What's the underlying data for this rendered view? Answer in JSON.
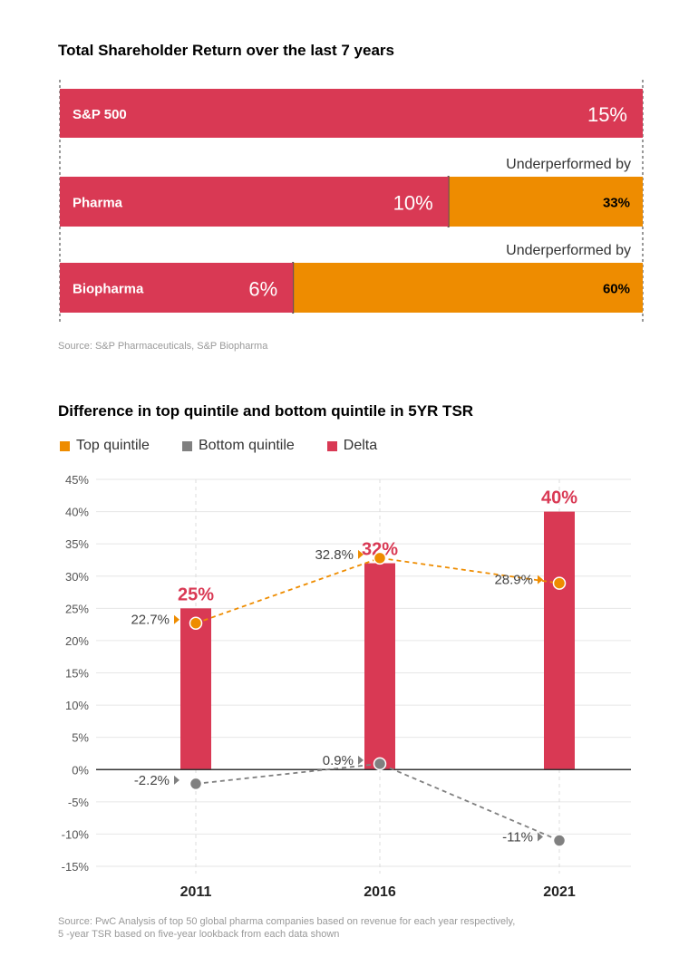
{
  "chart_data": [
    {
      "type": "bar",
      "orientation": "horizontal",
      "title": "Total Shareholder Return over the last 7 years",
      "categories": [
        "S&P 500",
        "Pharma",
        "Biopharma"
      ],
      "values": [
        15,
        10,
        6
      ],
      "value_labels": [
        "15%",
        "10%",
        "6%"
      ],
      "underperformance": [
        {
          "category": "Pharma",
          "label": "Underperformed by",
          "value": 33,
          "value_label": "33%"
        },
        {
          "category": "Biopharma",
          "label": "Underperformed by",
          "value": 60,
          "value_label": "60%"
        }
      ],
      "xlim": [
        0,
        15
      ],
      "source": "Source: S&P Pharmaceuticals, S&P Biopharma",
      "colors": {
        "bar": "#d93954",
        "gap": "#ee8c00"
      }
    },
    {
      "type": "bar",
      "title": "Difference in top quintile and bottom quintile in 5YR TSR",
      "categories": [
        "2011",
        "2016",
        "2021"
      ],
      "series": [
        {
          "name": "Top quintile",
          "kind": "line",
          "values": [
            22.7,
            32.8,
            28.9
          ],
          "labels": [
            "22.7%",
            "32.8%",
            "28.9%"
          ],
          "color": "#ee8c00"
        },
        {
          "name": "Bottom quintile",
          "kind": "line",
          "values": [
            -2.2,
            0.9,
            -11
          ],
          "labels": [
            "-2.2%",
            "0.9%",
            "-11%"
          ],
          "color": "#808080"
        },
        {
          "name": "Delta",
          "kind": "bar",
          "values": [
            25,
            32,
            40
          ],
          "labels": [
            "25%",
            "32%",
            "40%"
          ],
          "color": "#d93954"
        }
      ],
      "ylim": [
        -15,
        45
      ],
      "yticks": [
        "-15%",
        "-10%",
        "-5%",
        "0%",
        "5%",
        "10%",
        "15%",
        "20%",
        "25%",
        "30%",
        "35%",
        "40%",
        "45%"
      ],
      "grid": true,
      "legend": "top-left",
      "source": "Source: PwC Analysis of top 50 global pharma companies based on revenue for each year respectively,",
      "source_line2": "5 -year TSR based on five-year lookback from each data shown"
    }
  ]
}
